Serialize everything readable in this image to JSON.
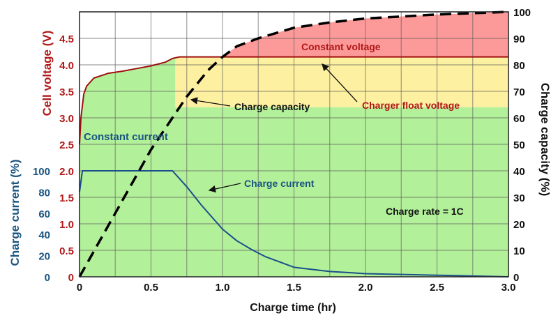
{
  "chart_data": {
    "type": "line",
    "title": "",
    "xlabel": "Charge time (hr)",
    "ylabel_left_voltage": "Cell voltage (V)",
    "ylabel_left_current": "Charge current (%)",
    "ylabel_right": "Charge capacity (%)",
    "xlim": [
      0,
      3.0
    ],
    "voltage_lim": [
      0,
      5.0
    ],
    "current_lim": [
      0,
      250
    ],
    "capacity_lim": [
      0,
      100
    ],
    "grid": true,
    "x_ticks": [
      "0",
      "0.5",
      "1.0",
      "1.5",
      "2.0",
      "2.5",
      "3.0"
    ],
    "voltage_ticks": [
      "0",
      "0.5",
      "1.0",
      "1.5",
      "2.0",
      "2.5",
      "3.0",
      "3.5",
      "4.0",
      "4.5"
    ],
    "current_ticks": [
      "0",
      "20",
      "40",
      "60",
      "80",
      "100"
    ],
    "capacity_ticks": [
      "0",
      "10",
      "20",
      "30",
      "40",
      "50",
      "60",
      "70",
      "80",
      "90",
      "100"
    ],
    "series": [
      {
        "name": "Cell voltage",
        "axis": "voltage",
        "color": "#a01010",
        "x": [
          0,
          0.01,
          0.03,
          0.05,
          0.1,
          0.2,
          0.3,
          0.4,
          0.5,
          0.6,
          0.65,
          0.7,
          3.0
        ],
        "y": [
          2.5,
          3.0,
          3.45,
          3.6,
          3.75,
          3.84,
          3.88,
          3.93,
          3.98,
          4.05,
          4.12,
          4.15,
          4.15
        ]
      },
      {
        "name": "Charge current",
        "axis": "current",
        "color": "#1a4f8a",
        "x": [
          0,
          0.02,
          0.65,
          0.75,
          0.85,
          1.0,
          1.1,
          1.2,
          1.3,
          1.4,
          1.5,
          1.75,
          2.0,
          2.5,
          3.0
        ],
        "y": [
          80,
          100,
          100,
          85,
          68,
          45,
          34,
          26,
          19,
          14,
          9,
          5,
          3,
          1.5,
          0
        ]
      },
      {
        "name": "Charge capacity",
        "axis": "capacity",
        "color": "#000000",
        "dashed": true,
        "x": [
          0,
          0.25,
          0.5,
          0.75,
          0.9,
          1.0,
          1.1,
          1.25,
          1.5,
          1.75,
          2.0,
          2.5,
          3.0
        ],
        "y": [
          0,
          24,
          48,
          68,
          78,
          83,
          87,
          90,
          94,
          96,
          97.5,
          99,
          100
        ]
      }
    ],
    "regions": [
      {
        "name": "constant-current-region",
        "color": "#b3f09a"
      },
      {
        "name": "float-region",
        "color": "#fdf0a0",
        "x": [
          0.67,
          3.0
        ],
        "voltage": [
          3.2,
          4.15
        ]
      },
      {
        "name": "constant-voltage-region",
        "color": "#fc9a9a"
      }
    ],
    "annotations": {
      "constant_voltage": "Constant voltage",
      "charger_float_voltage": "Charger float voltage",
      "charge_capacity": "Charge capacity",
      "constant_current": "Constant current",
      "charge_current": "Charge current",
      "charge_rate": "Charge rate = 1C"
    },
    "colors": {
      "voltage_axis": "#b01818",
      "current_axis": "#1a5580",
      "capacity_axis": "#111111"
    }
  }
}
